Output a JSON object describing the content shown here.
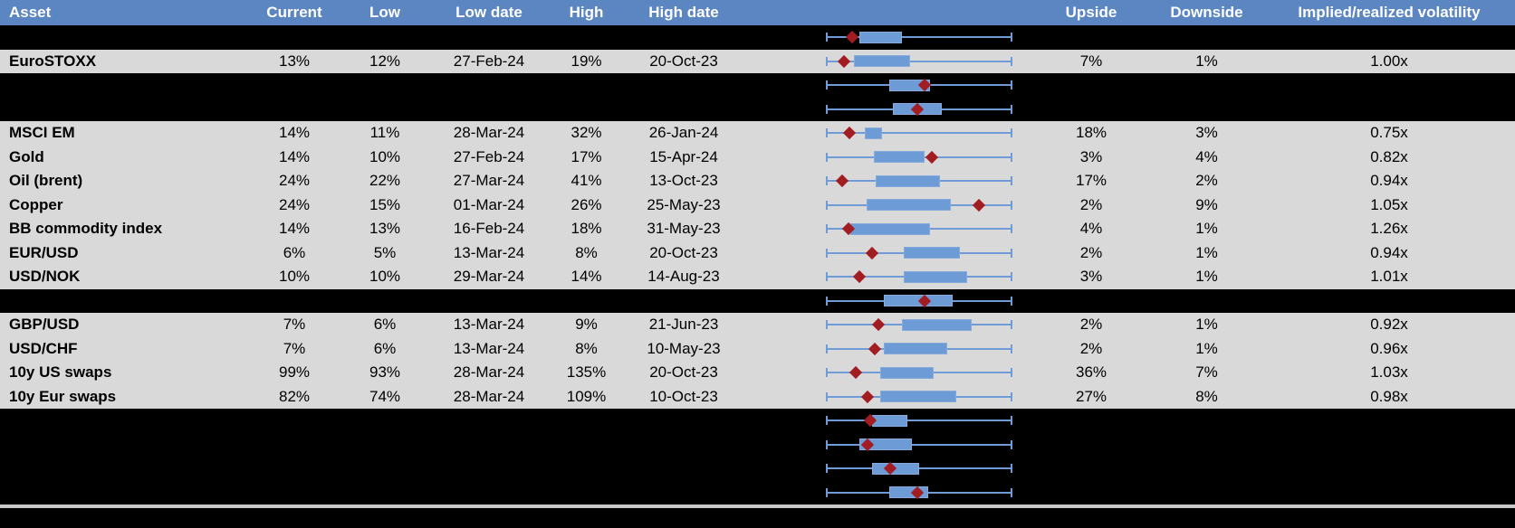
{
  "colors": {
    "header-bg": "#5b86c2",
    "header-text": "#ffffff",
    "row-bg": "#d9d9d9",
    "row-text": "#000000",
    "hidden-bg": "#000000",
    "box-fill": "#6d9bd5",
    "box-border": "#86aadc",
    "whisker": "#6f9cd6",
    "marker": "#a21d22",
    "divider": "#c9c9c9"
  },
  "header": {
    "columns": [
      {
        "label": "Asset"
      },
      {
        "label": "Current"
      },
      {
        "label": "Low"
      },
      {
        "label": "Low date"
      },
      {
        "label": "High"
      },
      {
        "label": "High date"
      },
      {
        "label": ""
      },
      {
        "label": "Upside"
      },
      {
        "label": "Downside"
      },
      {
        "label": "Implied/realized volatility"
      }
    ]
  },
  "rows": [
    {
      "type": "hidden",
      "boxplot": {
        "box_start": 0.18,
        "box_end": 0.41,
        "marker": 0.14
      }
    },
    {
      "type": "data",
      "asset": "EuroSTOXX",
      "current": "13%",
      "low": "12%",
      "low_date": "27-Feb-24",
      "high": "19%",
      "high_date": "20-Oct-23",
      "upside": "7%",
      "downside": "1%",
      "implied_realized": "1.00x",
      "boxplot": {
        "box_start": 0.15,
        "box_end": 0.45,
        "marker": 0.1
      }
    },
    {
      "type": "hidden",
      "boxplot": {
        "box_start": 0.34,
        "box_end": 0.56,
        "marker": 0.53
      }
    },
    {
      "type": "hidden",
      "boxplot": {
        "box_start": 0.36,
        "box_end": 0.62,
        "marker": 0.49
      }
    },
    {
      "type": "data",
      "asset": "MSCI EM",
      "current": "14%",
      "low": "11%",
      "low_date": "28-Mar-24",
      "high": "32%",
      "high_date": "26-Jan-24",
      "upside": "18%",
      "downside": "3%",
      "implied_realized": "0.75x",
      "boxplot": {
        "box_start": 0.21,
        "box_end": 0.3,
        "marker": 0.125
      }
    },
    {
      "type": "data",
      "asset": "Gold",
      "current": "14%",
      "low": "10%",
      "low_date": "27-Feb-24",
      "high": "17%",
      "high_date": "15-Apr-24",
      "upside": "3%",
      "downside": "4%",
      "implied_realized": "0.82x",
      "boxplot": {
        "box_start": 0.26,
        "box_end": 0.53,
        "marker": 0.57
      }
    },
    {
      "type": "data",
      "asset": "Oil (brent)",
      "current": "24%",
      "low": "22%",
      "low_date": "27-Mar-24",
      "high": "41%",
      "high_date": "13-Oct-23",
      "upside": "17%",
      "downside": "2%",
      "implied_realized": "0.94x",
      "boxplot": {
        "box_start": 0.27,
        "box_end": 0.61,
        "marker": 0.09
      }
    },
    {
      "type": "data",
      "asset": "Copper",
      "current": "24%",
      "low": "15%",
      "low_date": "01-Mar-24",
      "high": "26%",
      "high_date": "25-May-23",
      "upside": "2%",
      "downside": "9%",
      "implied_realized": "1.05x",
      "boxplot": {
        "box_start": 0.22,
        "box_end": 0.67,
        "marker": 0.82
      }
    },
    {
      "type": "data",
      "asset": "BB commodity index",
      "current": "14%",
      "low": "13%",
      "low_date": "16-Feb-24",
      "high": "18%",
      "high_date": "31-May-23",
      "upside": "4%",
      "downside": "1%",
      "implied_realized": "1.26x",
      "boxplot": {
        "box_start": 0.13,
        "box_end": 0.56,
        "marker": 0.12
      }
    },
    {
      "type": "data",
      "asset": "EUR/USD",
      "current": "6%",
      "low": "5%",
      "low_date": "13-Mar-24",
      "high": "8%",
      "high_date": "20-Oct-23",
      "upside": "2%",
      "downside": "1%",
      "implied_realized": "0.94x",
      "boxplot": {
        "box_start": 0.42,
        "box_end": 0.72,
        "marker": 0.25
      }
    },
    {
      "type": "data",
      "asset": "USD/NOK",
      "current": "10%",
      "low": "10%",
      "low_date": "29-Mar-24",
      "high": "14%",
      "high_date": "14-Aug-23",
      "upside": "3%",
      "downside": "1%",
      "implied_realized": "1.01x",
      "boxplot": {
        "box_start": 0.42,
        "box_end": 0.76,
        "marker": 0.18
      }
    },
    {
      "type": "hidden",
      "boxplot": {
        "box_start": 0.31,
        "box_end": 0.68,
        "marker": 0.53
      }
    },
    {
      "type": "data",
      "asset": "GBP/USD",
      "current": "7%",
      "low": "6%",
      "low_date": "13-Mar-24",
      "high": "9%",
      "high_date": "21-Jun-23",
      "upside": "2%",
      "downside": "1%",
      "implied_realized": "0.92x",
      "boxplot": {
        "box_start": 0.41,
        "box_end": 0.78,
        "marker": 0.28
      }
    },
    {
      "type": "data",
      "asset": "USD/CHF",
      "current": "7%",
      "low": "6%",
      "low_date": "13-Mar-24",
      "high": "8%",
      "high_date": "10-May-23",
      "upside": "2%",
      "downside": "1%",
      "implied_realized": "0.96x",
      "boxplot": {
        "box_start": 0.31,
        "box_end": 0.65,
        "marker": 0.265
      }
    },
    {
      "type": "data",
      "asset": "10y US swaps",
      "current": "99%",
      "low": "93%",
      "low_date": "28-Mar-24",
      "high": "135%",
      "high_date": "20-Oct-23",
      "upside": "36%",
      "downside": "7%",
      "implied_realized": "1.03x",
      "boxplot": {
        "box_start": 0.29,
        "box_end": 0.58,
        "marker": 0.16
      }
    },
    {
      "type": "data",
      "asset": "10y Eur swaps",
      "current": "82%",
      "low": "74%",
      "low_date": "28-Mar-24",
      "high": "109%",
      "high_date": "10-Oct-23",
      "upside": "27%",
      "downside": "8%",
      "implied_realized": "0.98x",
      "boxplot": {
        "box_start": 0.29,
        "box_end": 0.7,
        "marker": 0.225
      }
    },
    {
      "type": "hidden",
      "boxplot": {
        "box_start": 0.25,
        "box_end": 0.44,
        "marker": 0.24
      }
    },
    {
      "type": "hidden",
      "boxplot": {
        "box_start": 0.18,
        "box_end": 0.46,
        "marker": 0.225
      }
    },
    {
      "type": "hidden",
      "boxplot": {
        "box_start": 0.25,
        "box_end": 0.5,
        "marker": 0.345
      }
    },
    {
      "type": "hidden",
      "boxplot": {
        "box_start": 0.34,
        "box_end": 0.55,
        "marker": 0.49
      }
    }
  ]
}
